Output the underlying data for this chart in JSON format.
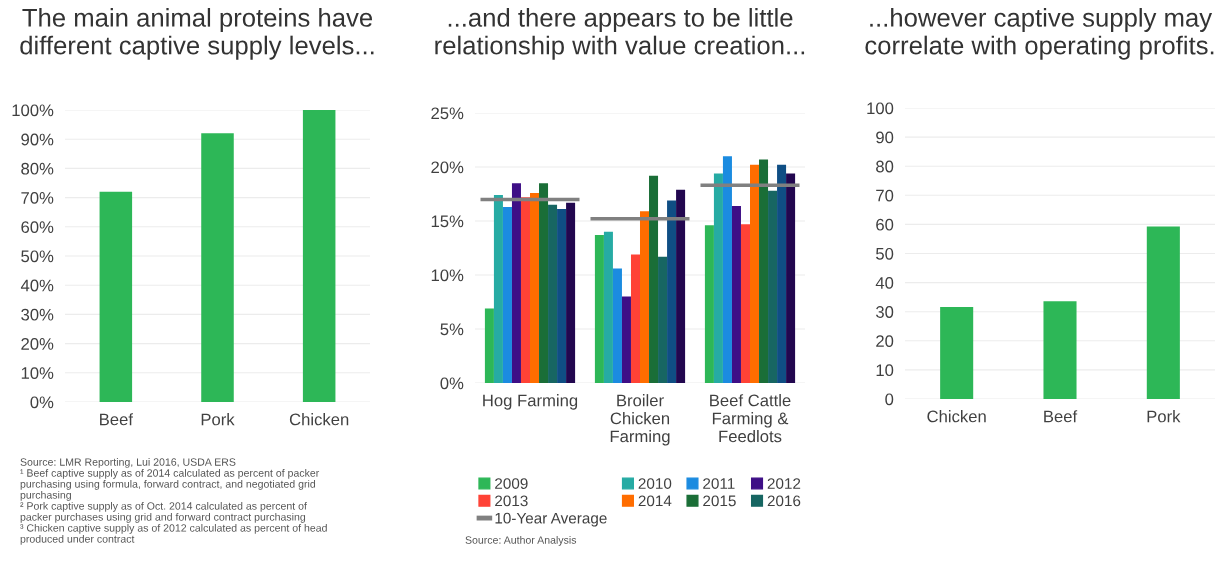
{
  "chart_data": [
    {
      "type": "bar",
      "title": "The main animal proteins have\ndifferent captive supply levels...",
      "categories": [
        "Beef",
        "Pork",
        "Chicken"
      ],
      "values": [
        72,
        92,
        100
      ],
      "color": "#2db757",
      "ylim": [
        0,
        100
      ],
      "yticks": [
        {
          "value": 0,
          "label": "0%"
        },
        {
          "value": 10,
          "label": "10%"
        },
        {
          "value": 20,
          "label": "20%"
        },
        {
          "value": 30,
          "label": "30%"
        },
        {
          "value": 40,
          "label": "40%"
        },
        {
          "value": 50,
          "label": "50%"
        },
        {
          "value": 60,
          "label": "60%"
        },
        {
          "value": 70,
          "label": "70%"
        },
        {
          "value": 80,
          "label": "80%"
        },
        {
          "value": 90,
          "label": "90%"
        },
        {
          "value": 100,
          "label": "100%"
        }
      ],
      "grid": "y",
      "annotations": [
        "Source: LMR Reporting, Lui 2016, USDA ERS\n¹ Beef captive supply as of 2014 calculated as percent of packer\npurchasing using formula, forward contract, and negotiated grid\npurchasing\n² Pork captive supply as of Oct. 2014 calculated as percent of\npacker purchases using grid and forward contract purchasing\n³ Chicken captive supply as of 2012 calculated as percent of head\nproduced under contract"
      ]
    },
    {
      "type": "bar",
      "title": "...and there appears to be little\nrelationship with value creation...",
      "categories": [
        "Hog Farming",
        "Broiler\nChicken\nFarming",
        "Beef Cattle\nFarming &\nFeedlots"
      ],
      "ylim": [
        0,
        25
      ],
      "yticks": [
        {
          "value": 0,
          "label": "0%"
        },
        {
          "value": 5,
          "label": "5%"
        },
        {
          "value": 10,
          "label": "10%"
        },
        {
          "value": 15,
          "label": "15%"
        },
        {
          "value": 20,
          "label": "20%"
        },
        {
          "value": 25,
          "label": "25%"
        }
      ],
      "grid": "y",
      "legend": "bottom",
      "series": [
        {
          "name": "2009",
          "color": "#2db757",
          "values": [
            6.9,
            13.7,
            14.6
          ]
        },
        {
          "name": "2010",
          "color": "#26aba4",
          "values": [
            17.4,
            14.0,
            19.4
          ]
        },
        {
          "name": "2011",
          "color": "#1b8be0",
          "values": [
            16.3,
            10.6,
            21.0
          ]
        },
        {
          "name": "2012",
          "color": "#3e0f86",
          "values": [
            18.5,
            8.0,
            16.4
          ]
        },
        {
          "name": "2013",
          "color": "#ff4236",
          "values": [
            17.2,
            11.9,
            14.7
          ]
        },
        {
          "name": "2014",
          "color": "#ff6d00",
          "values": [
            17.6,
            15.9,
            20.2
          ]
        },
        {
          "name": "2015",
          "color": "#1a6e37",
          "values": [
            18.5,
            19.2,
            20.7
          ]
        },
        {
          "name": "2016",
          "color": "#176662",
          "values": [
            16.5,
            11.7,
            17.8
          ]
        },
        {
          "color": "#0f4e84",
          "values": [
            16.1,
            16.9,
            20.2
          ]
        },
        {
          "color": "#22074f",
          "values": [
            16.7,
            17.9,
            19.4
          ]
        }
      ],
      "ref_lines": [
        {
          "axis": "y",
          "value": 17.0,
          "label": "10-Year Average",
          "color": "#808080"
        },
        {
          "axis": "y",
          "value": 15.2,
          "label": null,
          "color": "#808080"
        },
        {
          "axis": "y",
          "value": 18.3,
          "label": null,
          "color": "#808080"
        }
      ],
      "annotations": [
        "Source: Author Analysis"
      ]
    },
    {
      "type": "bar",
      "title": "...however captive supply may\ncorrelate with operating profits.",
      "categories": [
        "Chicken",
        "Beef",
        "Pork"
      ],
      "values": [
        31.6,
        33.6,
        59.3
      ],
      "color": "#2db757",
      "ylim": [
        0,
        100
      ],
      "yticks": [
        0,
        10,
        20,
        30,
        40,
        50,
        60,
        70,
        80,
        90,
        100
      ],
      "grid": "y"
    }
  ]
}
